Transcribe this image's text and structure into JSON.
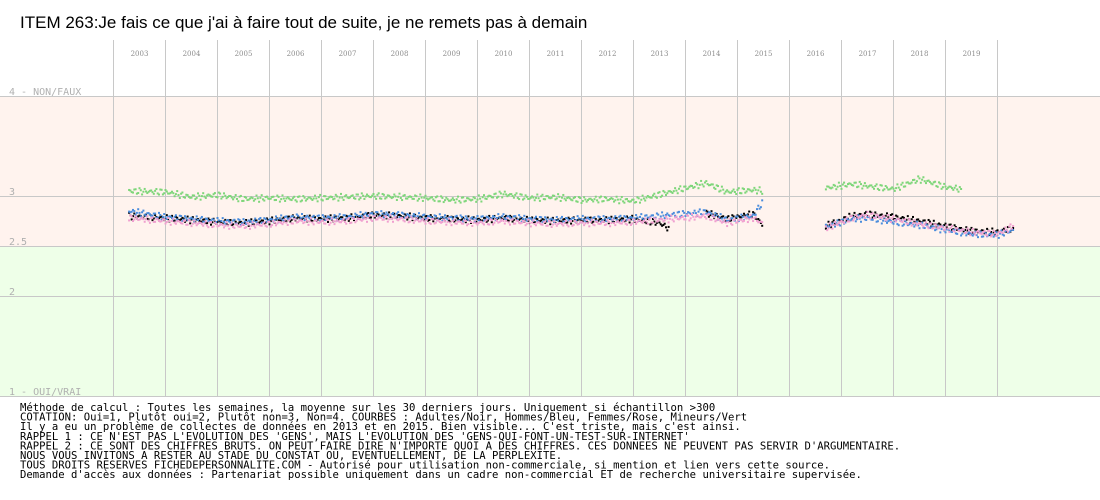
{
  "chart_data": {
    "type": "scatter",
    "title": "ITEM 263:Je fais ce que j'ai à faire tout de suite, je ne remets pas à demain",
    "x_labels": [
      "2003",
      "2004",
      "2005",
      "2006",
      "2007",
      "2008",
      "2009",
      "2010",
      "2011",
      "2012",
      "2013",
      "2014",
      "2015",
      "2016",
      "2017",
      "2018",
      "2019"
    ],
    "y_labels": [
      {
        "value": 4,
        "text": "4 - NON/FAUX"
      },
      {
        "value": 3,
        "text": "3"
      },
      {
        "value": 2.5,
        "text": "2.5"
      },
      {
        "value": 2,
        "text": "2"
      },
      {
        "value": 1,
        "text": "1 - OUI/VRAI"
      }
    ],
    "ylim": [
      1,
      4
    ],
    "grid": true,
    "legend": "none",
    "background_bands": [
      {
        "from": 2.5,
        "to": 4,
        "color": "#fff3ee"
      },
      {
        "from": 1,
        "to": 2.5,
        "color": "#eeffe8"
      }
    ],
    "gaps": [
      [
        2013.3,
        2013.9
      ],
      [
        2015.1,
        2016.2
      ]
    ],
    "series": [
      {
        "color": "#000000",
        "marker": "dot",
        "points": [
          [
            2002.8,
            2.8
          ],
          [
            2003.5,
            2.78
          ],
          [
            2004.0,
            2.76
          ],
          [
            2004.5,
            2.74
          ],
          [
            2005.0,
            2.73
          ],
          [
            2005.5,
            2.75
          ],
          [
            2006.0,
            2.78
          ],
          [
            2006.5,
            2.77
          ],
          [
            2007.0,
            2.78
          ],
          [
            2007.5,
            2.81
          ],
          [
            2008.0,
            2.8
          ],
          [
            2008.5,
            2.78
          ],
          [
            2009.0,
            2.77
          ],
          [
            2009.5,
            2.76
          ],
          [
            2010.0,
            2.78
          ],
          [
            2010.5,
            2.76
          ],
          [
            2011.0,
            2.75
          ],
          [
            2011.5,
            2.76
          ],
          [
            2012.0,
            2.76
          ],
          [
            2012.5,
            2.77
          ],
          [
            2013.0,
            2.73
          ],
          [
            2013.2,
            2.67
          ],
          [
            2013.9,
            2.83
          ],
          [
            2014.3,
            2.77
          ],
          [
            2014.8,
            2.82
          ],
          [
            2015.0,
            2.7
          ],
          [
            2016.2,
            2.7
          ],
          [
            2016.7,
            2.8
          ],
          [
            2017.0,
            2.82
          ],
          [
            2017.5,
            2.79
          ],
          [
            2018.0,
            2.75
          ],
          [
            2018.5,
            2.7
          ],
          [
            2019.0,
            2.65
          ],
          [
            2019.5,
            2.64
          ],
          [
            2019.8,
            2.68
          ]
        ]
      },
      {
        "color": "#4a8cdc",
        "marker": "dot",
        "points": [
          [
            2002.8,
            2.85
          ],
          [
            2003.5,
            2.79
          ],
          [
            2004.0,
            2.77
          ],
          [
            2004.5,
            2.75
          ],
          [
            2005.0,
            2.74
          ],
          [
            2005.5,
            2.76
          ],
          [
            2006.0,
            2.79
          ],
          [
            2006.5,
            2.78
          ],
          [
            2007.0,
            2.79
          ],
          [
            2007.5,
            2.82
          ],
          [
            2008.0,
            2.81
          ],
          [
            2008.5,
            2.79
          ],
          [
            2009.0,
            2.78
          ],
          [
            2009.5,
            2.77
          ],
          [
            2010.0,
            2.79
          ],
          [
            2010.5,
            2.77
          ],
          [
            2011.0,
            2.76
          ],
          [
            2011.5,
            2.77
          ],
          [
            2012.0,
            2.77
          ],
          [
            2012.5,
            2.78
          ],
          [
            2013.9,
            2.84
          ],
          [
            2014.3,
            2.76
          ],
          [
            2014.8,
            2.8
          ],
          [
            2015.0,
            2.95
          ],
          [
            2016.2,
            2.69
          ],
          [
            2016.7,
            2.77
          ],
          [
            2017.0,
            2.78
          ],
          [
            2017.5,
            2.74
          ],
          [
            2018.0,
            2.71
          ],
          [
            2018.5,
            2.66
          ],
          [
            2019.0,
            2.62
          ],
          [
            2019.5,
            2.61
          ],
          [
            2019.8,
            2.66
          ]
        ]
      },
      {
        "color": "#f0a0d0",
        "marker": "dot",
        "points": [
          [
            2002.8,
            2.78
          ],
          [
            2003.5,
            2.75
          ],
          [
            2004.0,
            2.73
          ],
          [
            2004.5,
            2.71
          ],
          [
            2005.0,
            2.7
          ],
          [
            2005.5,
            2.72
          ],
          [
            2006.0,
            2.75
          ],
          [
            2006.5,
            2.74
          ],
          [
            2007.0,
            2.75
          ],
          [
            2007.5,
            2.78
          ],
          [
            2008.0,
            2.77
          ],
          [
            2008.5,
            2.75
          ],
          [
            2009.0,
            2.74
          ],
          [
            2009.5,
            2.73
          ],
          [
            2010.0,
            2.75
          ],
          [
            2010.5,
            2.73
          ],
          [
            2011.0,
            2.72
          ],
          [
            2011.5,
            2.73
          ],
          [
            2012.0,
            2.73
          ],
          [
            2012.5,
            2.74
          ],
          [
            2013.9,
            2.8
          ],
          [
            2014.3,
            2.73
          ],
          [
            2014.8,
            2.78
          ],
          [
            2015.0,
            2.72
          ],
          [
            2016.2,
            2.68
          ],
          [
            2016.7,
            2.78
          ],
          [
            2017.0,
            2.81
          ],
          [
            2017.5,
            2.77
          ],
          [
            2018.0,
            2.72
          ],
          [
            2018.5,
            2.68
          ],
          [
            2019.0,
            2.64
          ],
          [
            2019.5,
            2.62
          ],
          [
            2019.8,
            2.7
          ]
        ]
      },
      {
        "color": "#7ed67a",
        "marker": "dot",
        "points": [
          [
            2002.8,
            3.05
          ],
          [
            2003.5,
            3.04
          ],
          [
            2004.0,
            2.99
          ],
          [
            2004.5,
            3.01
          ],
          [
            2005.0,
            2.97
          ],
          [
            2005.5,
            2.98
          ],
          [
            2006.0,
            2.97
          ],
          [
            2006.5,
            2.98
          ],
          [
            2007.0,
            2.99
          ],
          [
            2007.5,
            3.0
          ],
          [
            2008.0,
            2.99
          ],
          [
            2008.5,
            2.98
          ],
          [
            2009.0,
            2.96
          ],
          [
            2009.5,
            2.97
          ],
          [
            2010.0,
            3.02
          ],
          [
            2010.5,
            2.98
          ],
          [
            2011.0,
            2.99
          ],
          [
            2011.5,
            2.96
          ],
          [
            2012.0,
            2.97
          ],
          [
            2012.5,
            2.95
          ],
          [
            2013.9,
            3.13
          ],
          [
            2014.3,
            3.04
          ],
          [
            2014.8,
            3.06
          ],
          [
            2015.0,
            3.05
          ],
          [
            2016.2,
            3.08
          ],
          [
            2016.7,
            3.12
          ],
          [
            2017.0,
            3.1
          ],
          [
            2017.5,
            3.07
          ],
          [
            2018.0,
            3.17
          ],
          [
            2018.5,
            3.09
          ],
          [
            2018.8,
            3.07
          ]
        ]
      }
    ],
    "notes": [
      "Méthode de calcul : Toutes les semaines, la moyenne sur les 30 derniers jours. Uniquement si échantillon >300",
      "COTATION: Oui=1, Plutôt oui=2, Plutôt non=3, Non=4. COURBES : Adultes/Noir, Hommes/Bleu, Femmes/Rose, Mineurs/Vert",
      "Il y a eu un problème de collectes de données en 2013 et en 2015. Bien visible... C'est triste, mais c'est ainsi.",
      "RAPPEL 1 : CE N'EST PAS L'EVOLUTION DES 'GENS', MAIS L'EVOLUTION DES 'GENS-QUI-FONT-UN-TEST-SUR-INTERNET'",
      "RAPPEL 2 : CE SONT DES CHIFFRES BRUTS. ON PEUT FAIRE DIRE N'IMPORTE QUOI A DES CHIFFRES. CES DONNEES NE PEUVENT PAS SERVIR D'ARGUMENTAIRE.",
      "           NOUS VOUS INVITONS A RESTER AU STADE DU CONSTAT OU, EVENTUELLEMENT,  DE LA PERPLEXITE.",
      "TOUS DROITS RESERVES FICHEDEPERSONNALITE.COM - Autorisé pour utilisation non-commerciale, si mention et lien vers cette source.",
      "Demande d'accès aux données : Partenariat possible uniquement dans un cadre non-commercial ET de recherche universitaire supervisée."
    ]
  }
}
